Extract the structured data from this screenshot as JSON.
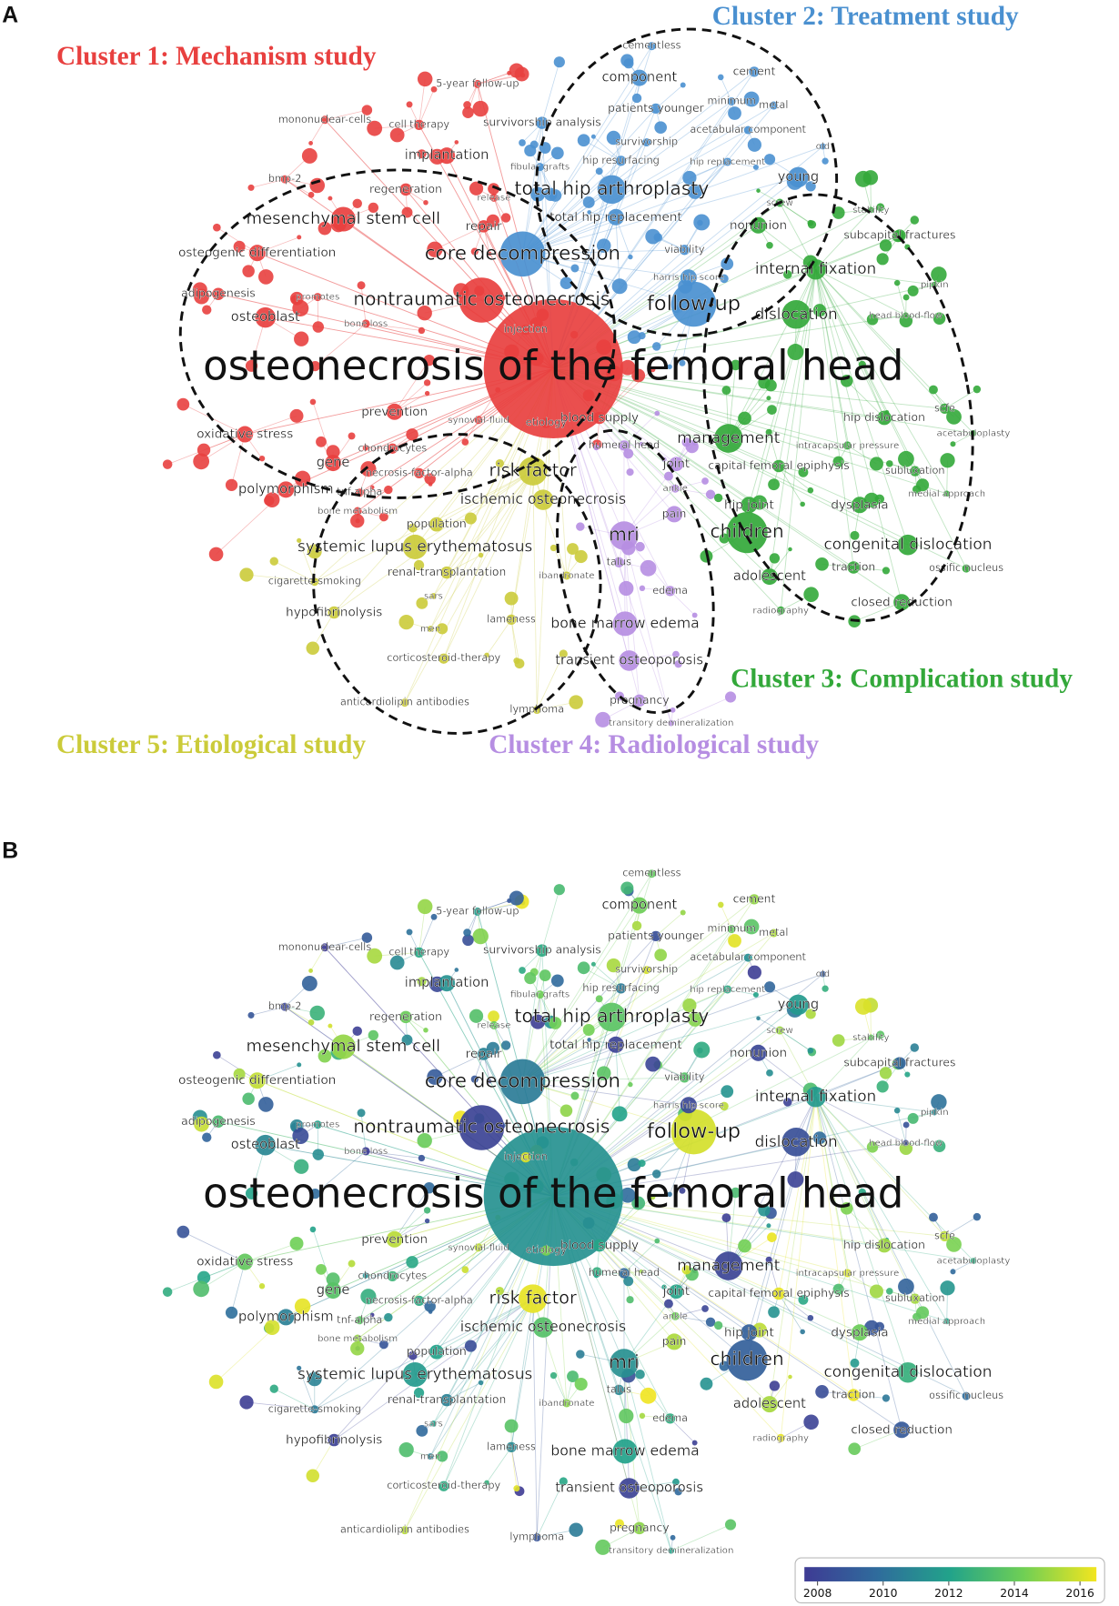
{
  "panels": [
    "A",
    "B"
  ],
  "clusters": [
    {
      "title": "Cluster 1: Mechanism study",
      "color": "#e8403f",
      "nodes": [
        "osteonecrosis of the femoral head",
        "nontraumatic osteonecrosis",
        "mesenchymal stem cell",
        "implantation",
        "osteoblast",
        "osteogenic differentiation",
        "adipogenesis",
        "oxidative stress",
        "gene",
        "polymorphism",
        "prevention",
        "regeneration",
        "mononuclear-cells",
        "cell therapy",
        "bmp-2",
        "5-year follow-up",
        "repair",
        "release",
        "promotes",
        "bone loss",
        "injection",
        "synovial-fluid",
        "etiology",
        "blood supply",
        "chondrocytes",
        "necrosis-factor-alpha",
        "tnf-alpha",
        "bone metabolism"
      ]
    },
    {
      "title": "Cluster 2: Treatment study",
      "color": "#4a90d0",
      "nodes": [
        "core decompression",
        "total hip arthroplasty",
        "follow-up",
        "cementless",
        "component",
        "cement",
        "minimum",
        "metal",
        "patients younger",
        "survivorship analysis",
        "acetabular component",
        "survivorship",
        "old",
        "fibular grafts",
        "hip resurfacing",
        "hip replacement",
        "young",
        "total hip replacement",
        "viability",
        "harris hip score"
      ]
    },
    {
      "title": "Cluster 3: Complication study",
      "color": "#33a83a",
      "nodes": [
        "internal fixation",
        "dislocation",
        "management",
        "children",
        "congenital dislocation",
        "stability",
        "screw",
        "subcapital fractures",
        "nonunion",
        "pipkin",
        "head blood-flow",
        "scfe",
        "hip dislocation",
        "acetabuloplasty",
        "intracapsular pressure",
        "capital femoral epiphysis",
        "subluxation",
        "hip joint",
        "dysplasia",
        "medial approach",
        "traction",
        "ossific nucleus",
        "adolescent",
        "closed reduction",
        "radiography"
      ]
    },
    {
      "title": "Cluster 4: Radiological study",
      "color": "#b68ee2",
      "nodes": [
        "mri",
        "bone marrow edema",
        "transient osteoporosis",
        "humeral head",
        "joint",
        "ankle",
        "pain",
        "talus",
        "edema",
        "pregnancy",
        "transitory demineralization"
      ]
    },
    {
      "title": "Cluster 5: Etiological study",
      "color": "#cbcb3a",
      "nodes": [
        "risk factor",
        "ischemic osteonecrosis",
        "systemic lupus erythematosus",
        "population",
        "renal-transplantation",
        "cigarette-smoking",
        "hypofibrinolysis",
        "sars",
        "men",
        "lameness",
        "ibandronate",
        "corticosteroid-therapy",
        "anticardiolipin antibodies",
        "lymphoma"
      ]
    }
  ],
  "colorbar": {
    "colors": [
      "#3e3b94",
      "#2f6c9c",
      "#22a38a",
      "#6fcf55",
      "#f2e51f"
    ],
    "range": [
      2007.6,
      2016.5
    ],
    "ticks": [
      2008,
      2010,
      2012,
      2014,
      2016
    ]
  }
}
